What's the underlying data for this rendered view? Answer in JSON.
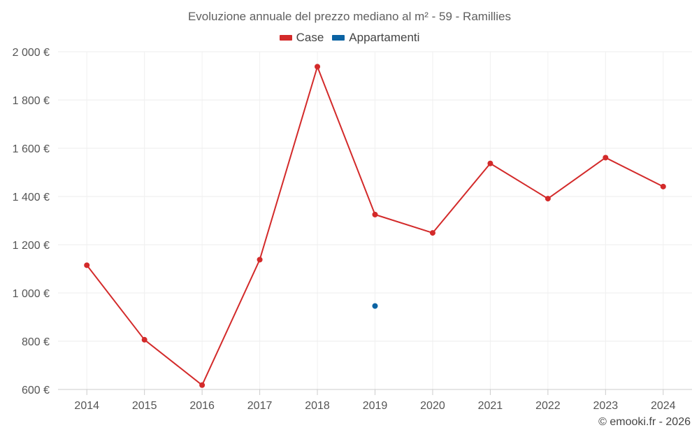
{
  "chart_data": {
    "type": "line",
    "title": "Evoluzione annuale del prezzo mediano al m² - 59 - Ramillies",
    "categories": [
      "2014",
      "2015",
      "2016",
      "2017",
      "2018",
      "2019",
      "2020",
      "2021",
      "2022",
      "2023",
      "2024"
    ],
    "y_ticks": [
      600,
      800,
      1000,
      1200,
      1400,
      1600,
      1800,
      2000
    ],
    "y_tick_labels": [
      "600 €",
      "800 €",
      "1 000 €",
      "1 200 €",
      "1 400 €",
      "1 600 €",
      "1 800 €",
      "2 000 €"
    ],
    "ylim": [
      600,
      2000
    ],
    "series": [
      {
        "name": "Case",
        "color": "#d32a2a",
        "values": [
          1115,
          806,
          618,
          1138,
          1938,
          1325,
          1249,
          1537,
          1391,
          1561,
          1441
        ]
      },
      {
        "name": "Appartamenti",
        "color": "#0b63a3",
        "values": [
          null,
          null,
          null,
          null,
          null,
          946,
          null,
          null,
          null,
          null,
          null
        ]
      }
    ],
    "xlabel": "",
    "ylabel": "",
    "grid": true,
    "legend_position": "top-center"
  },
  "credit": "© emooki.fr - 2026"
}
